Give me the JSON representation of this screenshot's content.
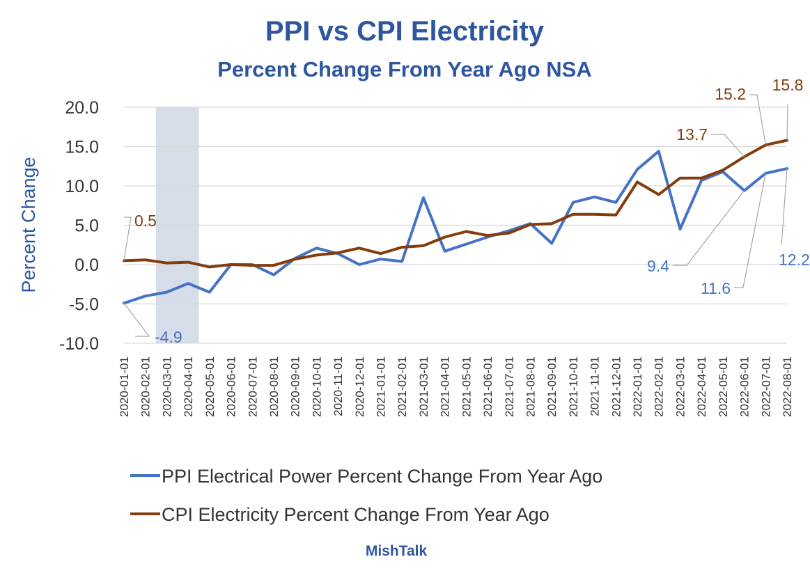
{
  "title": "PPI vs CPI Electricity",
  "subtitle": "Percent Change From Year Ago NSA",
  "source": "MishTalk",
  "colors": {
    "ppi": "#4472c4",
    "cpi": "#843c0c",
    "title": "#2e55a0",
    "shade": "#d6dde8",
    "grid": "#d9d9d9"
  },
  "chart_data": {
    "type": "line",
    "ylabel": "Percent Change",
    "xlabel": "",
    "ylim": [
      -10,
      20
    ],
    "yticks": [
      "20.0",
      "15.0",
      "10.0",
      "5.0",
      "0.0",
      "-5.0",
      "-10.0"
    ],
    "grid": true,
    "legend_position": "bottom",
    "categories": [
      "2020-01-01",
      "2020-02-01",
      "2020-03-01",
      "2020-04-01",
      "2020-05-01",
      "2020-06-01",
      "2020-07-01",
      "2020-08-01",
      "2020-09-01",
      "2020-10-01",
      "2020-11-01",
      "2020-12-01",
      "2021-01-01",
      "2021-02-01",
      "2021-03-01",
      "2021-04-01",
      "2021-05-01",
      "2021-06-01",
      "2021-07-01",
      "2021-08-01",
      "2021-09-01",
      "2021-10-01",
      "2021-11-01",
      "2021-12-01",
      "2022-01-01",
      "2022-02-01",
      "2022-03-01",
      "2022-04-01",
      "2022-05-01",
      "2022-06-01",
      "2022-07-01",
      "2022-08-01"
    ],
    "recession_shading": {
      "from": "2020-03-01",
      "to": "2020-04-01"
    },
    "series": [
      {
        "name": "PPI Electrical Power Percent Change From Year Ago",
        "values": [
          -4.9,
          -4.0,
          -3.5,
          -2.4,
          -3.5,
          0.0,
          0.0,
          -1.3,
          0.8,
          2.1,
          1.4,
          0.0,
          0.7,
          0.4,
          8.5,
          1.7,
          2.6,
          3.5,
          4.3,
          5.2,
          2.7,
          7.9,
          8.6,
          7.9,
          12.1,
          14.4,
          4.5,
          10.7,
          11.8,
          9.4,
          11.6,
          12.2
        ]
      },
      {
        "name": "CPI Electricity Percent Change From Year Ago",
        "values": [
          0.5,
          0.6,
          0.2,
          0.3,
          -0.3,
          0.0,
          -0.1,
          -0.1,
          0.7,
          1.2,
          1.5,
          2.1,
          1.4,
          2.2,
          2.4,
          3.5,
          4.2,
          3.7,
          4.0,
          5.1,
          5.2,
          6.4,
          6.4,
          6.3,
          10.5,
          8.9,
          11.0,
          11.0,
          12.0,
          13.7,
          15.2,
          15.8
        ]
      }
    ],
    "annotations": [
      {
        "text": "0.5",
        "series": 1,
        "category": "2020-01-01"
      },
      {
        "text": "-4.9",
        "series": 0,
        "category": "2020-01-01"
      },
      {
        "text": "13.7",
        "series": 1,
        "category": "2022-06-01"
      },
      {
        "text": "15.2",
        "series": 1,
        "category": "2022-07-01"
      },
      {
        "text": "15.8",
        "series": 1,
        "category": "2022-08-01"
      },
      {
        "text": "9.4",
        "series": 0,
        "category": "2022-06-01"
      },
      {
        "text": "11.6",
        "series": 0,
        "category": "2022-07-01"
      },
      {
        "text": "12.2",
        "series": 0,
        "category": "2022-08-01"
      }
    ]
  }
}
